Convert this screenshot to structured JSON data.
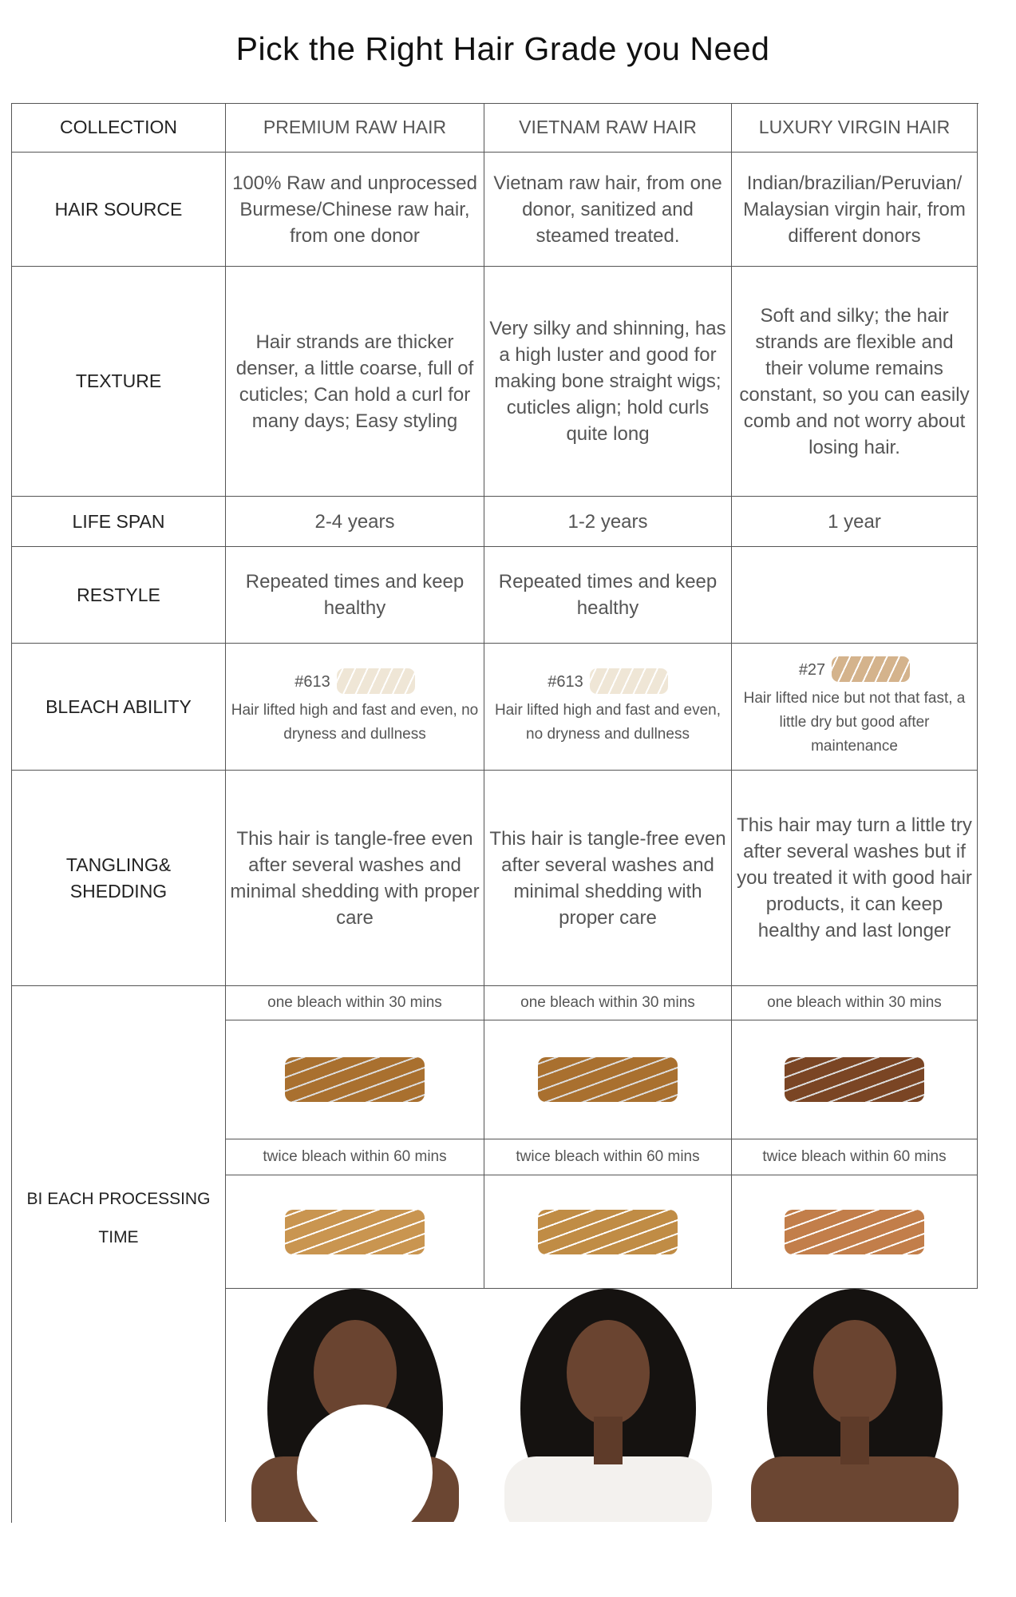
{
  "title": "Pick the Right Hair Grade you Need",
  "rows": {
    "collection": {
      "label": "COLLECTION",
      "values": [
        "PREMIUM RAW HAIR",
        "VIETNAM RAW HAIR",
        "LUXURY VIRGIN HAIR"
      ]
    },
    "source": {
      "label": "HAIR SOURCE",
      "values": [
        "100% Raw and unprocessed Burmese/Chinese raw hair, from one donor",
        "Vietnam raw hair,  from one donor, sanitized and steamed treated.",
        "Indian/brazilian/Peruvian/ Malaysian virgin hair, from different donors"
      ]
    },
    "texture": {
      "label": "TEXTURE",
      "values": [
        "Hair strands are thicker denser, a little coarse, full of cuticles; Can hold a curl for many days; Easy styling",
        "Very silky and shinning, has a high luster and good for making bone straight wigs; cuticles align; hold curls quite long",
        "Soft and silky; the hair strands are flexible and their volume remains constant, so you can easily comb and not worry about losing hair."
      ]
    },
    "lifespan": {
      "label": "LIFE SPAN",
      "values": [
        "2-4 years",
        "1-2 years",
        "1 year"
      ]
    },
    "restyle": {
      "label": "RESTYLE",
      "values": [
        "Repeated times and keep healthy",
        "Repeated times and keep healthy",
        ""
      ]
    },
    "bleach": {
      "label": "BLEACH ABILITY",
      "codes": [
        "#613",
        "#613",
        "#27"
      ],
      "values": [
        "Hair lifted high and fast and even, no dryness and dullness",
        "Hair lifted high and fast and even, no dryness and dullness",
        "Hair lifted nice but not that fast, a little dry but good after maintenance"
      ],
      "colors": [
        "#efe6d6",
        "#efe6d6",
        "#d4b38c"
      ]
    },
    "tangling": {
      "label": "TANGLING& SHEDDING",
      "values": [
        "This hair is tangle-free even after several washes and minimal shedding with proper care",
        "This hair is tangle-free even after several washes and minimal shedding with proper care",
        "This hair may turn a little try after several washes but if you treated it with good hair products, it can keep healthy and last longer"
      ]
    },
    "processing": {
      "label": "BI EACH PROCESSING TIME",
      "once": [
        "one bleach within 30 mins",
        "one bleach within 30 mins",
        "one bleach within 30 mins"
      ],
      "once_colors": [
        "#a9702f",
        "#a9702f",
        "#7a4524"
      ],
      "twice": [
        "twice bleach within 60 mins",
        "twice bleach within 60 mins",
        "twice bleach within 60 mins"
      ],
      "twice_colors": [
        "#c99550",
        "#c08c45",
        "#c27e4a"
      ]
    }
  }
}
